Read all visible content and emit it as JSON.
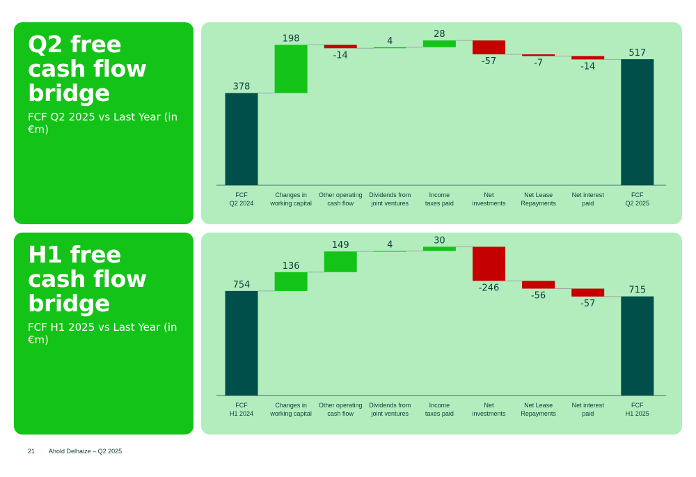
{
  "panels": {
    "q2": {
      "title": "Q2 free cash flow bridge",
      "subtitle": "FCF Q2 2025 vs Last Year (in €m)"
    },
    "h1": {
      "title": "H1 free cash flow bridge",
      "subtitle": "FCF H1 2025 vs Last Year (in €m)"
    }
  },
  "footer": {
    "page": "21",
    "text": "Ahold Delhaize – Q2 2025"
  },
  "colors": {
    "total": "#004f4a",
    "increase": "#14c318",
    "decrease": "#c40000",
    "connector": "#9aa8a4",
    "label": "#0b3d3a"
  },
  "chart_data": [
    {
      "type": "waterfall",
      "title": "Q2 free cash flow bridge",
      "categories": [
        [
          "FCF",
          "Q2 2024"
        ],
        [
          "Changes in",
          "working capital"
        ],
        [
          "Other operating",
          "cash flow"
        ],
        [
          "Dividends from",
          "joint ventures"
        ],
        [
          "Income",
          "taxes paid"
        ],
        [
          "Net",
          "investments"
        ],
        [
          "Net Lease",
          "Repayments"
        ],
        [
          "Net interest",
          "paid"
        ],
        [
          "FCF",
          "Q2 2025"
        ]
      ],
      "values": [
        378,
        198,
        -14,
        4,
        28,
        -57,
        -7,
        -14,
        517
      ],
      "labels": [
        "378",
        "198",
        "-14",
        "4",
        "28",
        "-57",
        "-7",
        "-14",
        "517"
      ],
      "kinds": [
        "total",
        "delta",
        "delta",
        "delta",
        "delta",
        "delta",
        "delta",
        "delta",
        "total"
      ],
      "ylim": [
        0,
        640
      ]
    },
    {
      "type": "waterfall",
      "title": "H1 free cash flow bridge",
      "categories": [
        [
          "FCF",
          "H1 2024"
        ],
        [
          "Changes in",
          "working capital"
        ],
        [
          "Other operating",
          "cash flow"
        ],
        [
          "Dividends from",
          "joint ventures"
        ],
        [
          "Income",
          "taxes paid"
        ],
        [
          "Net",
          "investments"
        ],
        [
          "Net Lease",
          "Repayments"
        ],
        [
          "Net interest",
          "paid"
        ],
        [
          "FCF",
          "H1 2025"
        ]
      ],
      "values": [
        754,
        136,
        149,
        4,
        30,
        -246,
        -56,
        -57,
        715
      ],
      "labels": [
        "754",
        "136",
        "149",
        "4",
        "30",
        "-246",
        "-56",
        "-57",
        "715"
      ],
      "kinds": [
        "total",
        "delta",
        "delta",
        "delta",
        "delta",
        "delta",
        "delta",
        "delta",
        "total"
      ],
      "ylim": [
        0,
        1125
      ]
    }
  ]
}
